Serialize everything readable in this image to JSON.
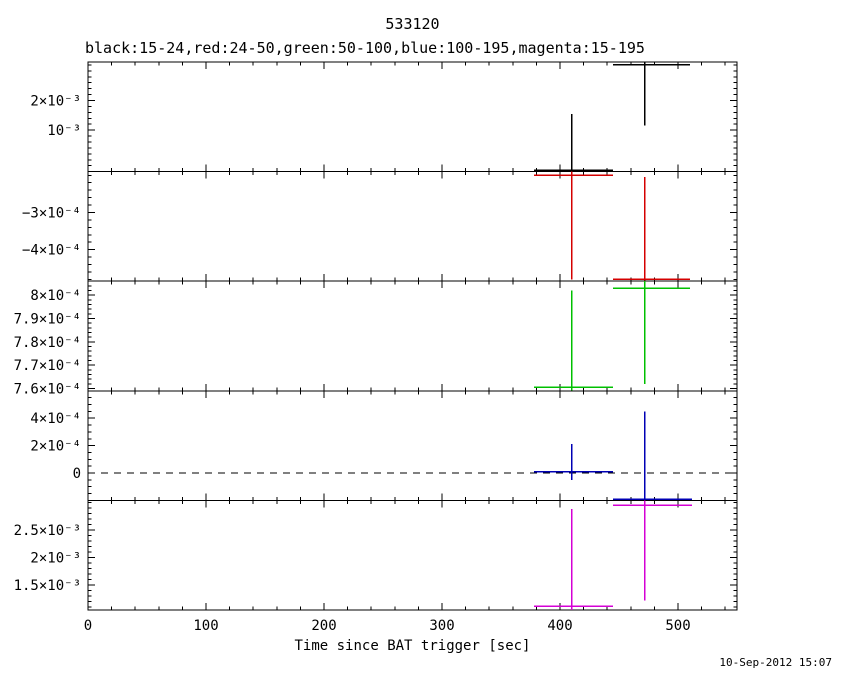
{
  "title": "533120",
  "subtitle": "black:15-24,red:24-50,green:50-100,blue:100-195,magenta:15-195",
  "xlabel": "Time since BAT trigger [sec]",
  "timestamp": "10-Sep-2012 15:07",
  "colors": {
    "black_band": "#000000",
    "red_band": "#d40000",
    "green_band": "#00c000",
    "blue_band": "#0000b4",
    "magenta_band": "#d400d4",
    "axis": "#000000",
    "background": "#ffffff"
  },
  "chart_data": {
    "type": "scatter",
    "subtype": "error-bar light curve, 5 stacked panels sharing x axis",
    "title": "533120",
    "legend_text": "black:15-24,red:24-50,green:50-100,blue:100-195,magenta:15-195",
    "xlabel": "Time since BAT trigger [sec]",
    "layout": {
      "panels_share_x": true,
      "grid": false,
      "legend_position": "above-top-panel"
    },
    "x_axis": {
      "lim": [
        0,
        550
      ],
      "ticks": [
        0,
        100,
        200,
        300,
        400,
        500
      ],
      "tick_labels": [
        "0",
        "100",
        "200",
        "300",
        "400",
        "500"
      ],
      "minor_step": 20
    },
    "panels": [
      {
        "band": "15-24",
        "color": "#000000",
        "ylim": [
          -0.0004,
          0.0033
        ],
        "yticks": [
          0.001,
          0.002
        ],
        "ytick_labels": [
          "10⁻³",
          "2×10⁻³"
        ],
        "yminor": 0.0002,
        "zero_line": false,
        "points": [
          {
            "x": 410,
            "xlo": 378,
            "xhi": 445,
            "y": -0.00035,
            "ylo": -0.0004,
            "yhi": 0.00155
          },
          {
            "x": 472,
            "xlo": 445,
            "xhi": 510,
            "y": 0.0032,
            "ylo": 0.00115,
            "yhi": 0.0033
          }
        ]
      },
      {
        "band": "24-50",
        "color": "#d40000",
        "ylim": [
          -0.000485,
          -0.00019
        ],
        "yticks": [
          -0.0003,
          -0.0004
        ],
        "ytick_labels": [
          "−3×10⁻⁴",
          "−4×10⁻⁴"
        ],
        "yminor": 2e-05,
        "zero_line": false,
        "points": [
          {
            "x": 410,
            "xlo": 378,
            "xhi": 445,
            "y": -0.0002,
            "ylo": -0.00048,
            "yhi": -0.00019
          },
          {
            "x": 472,
            "xlo": 445,
            "xhi": 510,
            "y": -0.00048,
            "ylo": -0.000485,
            "yhi": -0.000205
          }
        ]
      },
      {
        "band": "50-100",
        "color": "#00c000",
        "ylim": [
          0.000759,
          0.000806
        ],
        "yticks": [
          0.00076,
          0.00077,
          0.00078,
          0.00079,
          0.0008
        ],
        "ytick_labels": [
          "7.6×10⁻⁴",
          "7.7×10⁻⁴",
          "7.8×10⁻⁴",
          "7.9×10⁻⁴",
          "8×10⁻⁴"
        ],
        "yminor": 2e-06,
        "zero_line": false,
        "points": [
          {
            "x": 410,
            "xlo": 378,
            "xhi": 445,
            "y": 0.0007605,
            "ylo": 0.000759,
            "yhi": 0.000802
          },
          {
            "x": 472,
            "xlo": 445,
            "xhi": 510,
            "y": 0.000803,
            "ylo": 0.000762,
            "yhi": 0.000806
          }
        ]
      },
      {
        "band": "100-195",
        "color": "#0000b4",
        "ylim": [
          -0.0002,
          0.0006
        ],
        "yticks": [
          0,
          0.0002,
          0.0004
        ],
        "ytick_labels": [
          "0",
          "2×10⁻⁴",
          "4×10⁻⁴"
        ],
        "yminor": 5e-05,
        "zero_line": true,
        "points": [
          {
            "x": 410,
            "xlo": 378,
            "xhi": 445,
            "y": 1e-05,
            "ylo": -5e-05,
            "yhi": 0.00021
          },
          {
            "x": 472,
            "xlo": 445,
            "xhi": 512,
            "y": -0.00019,
            "ylo": -0.0002,
            "yhi": 0.00045
          }
        ]
      },
      {
        "band": "15-195",
        "color": "#d400d4",
        "ylim": [
          0.00105,
          0.00304
        ],
        "yticks": [
          0.0015,
          0.002,
          0.0025
        ],
        "ytick_labels": [
          "1.5×10⁻³",
          "2×10⁻³",
          "2.5×10⁻³"
        ],
        "yminor": 0.0001,
        "zero_line": false,
        "points": [
          {
            "x": 410,
            "xlo": 378,
            "xhi": 445,
            "y": 0.00112,
            "ylo": 0.00105,
            "yhi": 0.00288
          },
          {
            "x": 472,
            "xlo": 445,
            "xhi": 512,
            "y": 0.00295,
            "ylo": 0.00122,
            "yhi": 0.00304
          }
        ]
      }
    ]
  }
}
